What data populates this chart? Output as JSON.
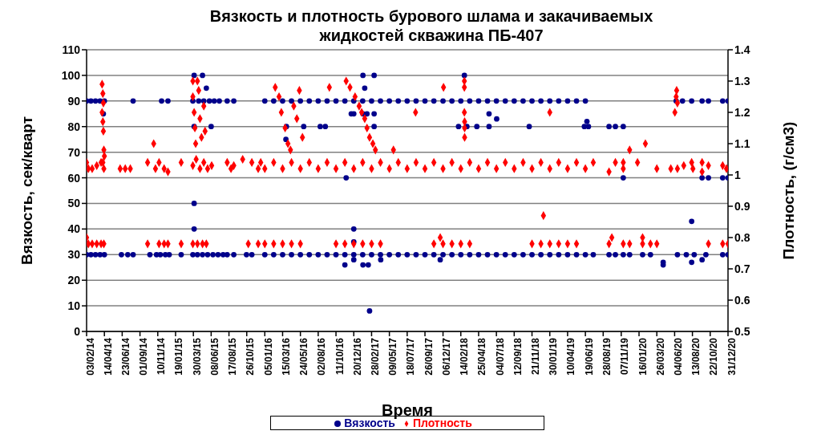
{
  "chart_data": {
    "type": "scatter",
    "title": "Вязкость и плотность бурового шлама и закачиваемых жидкостей скважина ПБ-407",
    "xlabel": "Время",
    "ylabel": "Вязкость, сек/кварт",
    "y2label": "Плотность, (г/см3)",
    "xlim": [
      "2014-02-03",
      "2020-12-31"
    ],
    "xticks": [
      {
        "value": "2014-02-03",
        "label": "03/02/14"
      },
      {
        "value": "2014-04-14",
        "label": "14/04/14"
      },
      {
        "value": "2014-06-23",
        "label": "23/06/14"
      },
      {
        "value": "2014-09-01",
        "label": "01/09/14"
      },
      {
        "value": "2014-11-10",
        "label": "10/11/14"
      },
      {
        "value": "2015-01-19",
        "label": "19/01/15"
      },
      {
        "value": "2015-03-30",
        "label": "30/03/15"
      },
      {
        "value": "2015-06-08",
        "label": "08/06/15"
      },
      {
        "value": "2015-08-17",
        "label": "17/08/15"
      },
      {
        "value": "2015-10-26",
        "label": "26/10/15"
      },
      {
        "value": "2016-01-05",
        "label": "05/01/16"
      },
      {
        "value": "2016-03-15",
        "label": "15/03/16"
      },
      {
        "value": "2016-05-24",
        "label": "24/05/16"
      },
      {
        "value": "2016-08-02",
        "label": "02/08/16"
      },
      {
        "value": "2016-10-11",
        "label": "11/10/16"
      },
      {
        "value": "2016-12-20",
        "label": "20/12/16"
      },
      {
        "value": "2017-02-28",
        "label": "28/02/17"
      },
      {
        "value": "2017-05-09",
        "label": "09/05/17"
      },
      {
        "value": "2017-07-18",
        "label": "18/07/17"
      },
      {
        "value": "2017-09-26",
        "label": "26/09/17"
      },
      {
        "value": "2017-12-06",
        "label": "06/12/17"
      },
      {
        "value": "2018-02-14",
        "label": "14/02/18"
      },
      {
        "value": "2018-04-25",
        "label": "25/04/18"
      },
      {
        "value": "2018-07-04",
        "label": "04/07/18"
      },
      {
        "value": "2018-09-12",
        "label": "12/09/18"
      },
      {
        "value": "2018-11-21",
        "label": "21/11/18"
      },
      {
        "value": "2019-01-30",
        "label": "30/01/19"
      },
      {
        "value": "2019-04-10",
        "label": "10/04/19"
      },
      {
        "value": "2019-06-19",
        "label": "19/06/19"
      },
      {
        "value": "2019-08-28",
        "label": "28/08/19"
      },
      {
        "value": "2019-11-07",
        "label": "07/11/19"
      },
      {
        "value": "2020-01-16",
        "label": "16/01/20"
      },
      {
        "value": "2020-03-26",
        "label": "26/03/20"
      },
      {
        "value": "2020-06-04",
        "label": "04/06/20"
      },
      {
        "value": "2020-08-13",
        "label": "13/08/20"
      },
      {
        "value": "2020-10-22",
        "label": "22/10/20"
      },
      {
        "value": "2020-12-31",
        "label": "31/12/20"
      }
    ],
    "ylim": [
      0,
      110
    ],
    "yticks": [
      0,
      10,
      20,
      30,
      40,
      50,
      60,
      70,
      80,
      90,
      100,
      110
    ],
    "y2lim": [
      0.5,
      1.4
    ],
    "y2ticks": [
      0.5,
      0.6,
      0.7,
      0.8,
      0.9,
      1,
      1.1,
      1.2,
      1.3,
      1.4
    ],
    "grid": "y",
    "legend": "bottom",
    "series": [
      {
        "name": "Вязкость",
        "color": "#00008b",
        "marker": "circle",
        "x": [
          "2014-02-03",
          "2014-02-03",
          "2014-02-20",
          "2014-02-20",
          "2014-03-10",
          "2014-03-10",
          "2014-03-28",
          "2014-03-28",
          "2014-04-10",
          "2014-04-14",
          "2014-04-14",
          "2014-06-20",
          "2014-07-15",
          "2014-08-05",
          "2014-08-05",
          "2014-10-10",
          "2014-11-05",
          "2014-11-20",
          "2014-12-10",
          "2014-12-25",
          "2014-11-25",
          "2014-12-20",
          "2015-02-10",
          "2015-03-28",
          "2015-04-15",
          "2015-05-05",
          "2015-05-25",
          "2015-06-15",
          "2015-07-05",
          "2015-07-25",
          "2015-03-28",
          "2015-04-20",
          "2015-05-10",
          "2015-06-01",
          "2015-06-20",
          "2015-07-10",
          "2015-04-02",
          "2015-05-05",
          "2015-05-20",
          "2015-04-02",
          "2015-06-08",
          "2015-04-02",
          "2015-04-02",
          "2015-08-10",
          "2015-09-05",
          "2015-08-10",
          "2015-09-05",
          "2015-10-25",
          "2015-11-15",
          "2016-01-05",
          "2016-01-05",
          "2016-02-09",
          "2016-02-09",
          "2016-03-15",
          "2016-03-15",
          "2016-04-19",
          "2016-04-19",
          "2016-05-24",
          "2016-05-24",
          "2016-06-28",
          "2016-06-28",
          "2016-08-02",
          "2016-08-02",
          "2016-09-06",
          "2016-09-06",
          "2016-10-11",
          "2016-10-11",
          "2016-11-15",
          "2016-11-15",
          "2016-12-20",
          "2016-12-20",
          "2017-01-24",
          "2017-01-24",
          "2017-02-28",
          "2017-02-28",
          "2017-04-04",
          "2017-04-04",
          "2017-05-09",
          "2017-05-09",
          "2017-06-13",
          "2017-06-13",
          "2017-07-18",
          "2017-07-18",
          "2017-08-22",
          "2017-08-22",
          "2017-09-26",
          "2017-09-26",
          "2017-10-31",
          "2017-10-31",
          "2017-12-06",
          "2017-12-06",
          "2018-01-10",
          "2018-01-10",
          "2018-02-14",
          "2018-02-14",
          "2018-03-21",
          "2018-03-21",
          "2018-04-25",
          "2018-04-25",
          "2018-05-30",
          "2018-05-30",
          "2018-07-04",
          "2018-07-04",
          "2018-08-08",
          "2018-08-08",
          "2018-09-12",
          "2018-09-12",
          "2018-10-17",
          "2018-10-17",
          "2018-11-21",
          "2018-11-21",
          "2018-12-26",
          "2018-12-26",
          "2019-01-30",
          "2019-01-30",
          "2019-03-06",
          "2019-03-06",
          "2019-04-10",
          "2019-04-10",
          "2019-05-15",
          "2019-05-15",
          "2019-06-19",
          "2019-06-19",
          "2019-07-20",
          "2016-03-30",
          "2016-03-28",
          "2016-06-06",
          "2016-08-10",
          "2016-08-30",
          "2016-12-10",
          "2016-12-20",
          "2016-11-20",
          "2016-12-20",
          "2016-12-20",
          "2016-11-15",
          "2016-12-20",
          "2017-01-25",
          "2017-03-10",
          "2017-02-01",
          "2017-01-25",
          "2017-02-10",
          "2017-03-10",
          "2017-03-10",
          "2017-01-25",
          "2017-02-15",
          "2017-02-20",
          "2017-04-05",
          "2017-11-25",
          "2018-02-28",
          "2018-02-05",
          "2018-03-10",
          "2018-04-18",
          "2018-06-05",
          "2018-06-05",
          "2018-07-05",
          "2018-11-10",
          "2019-06-15",
          "2019-06-25",
          "2019-07-01",
          "2019-09-20",
          "2019-10-15",
          "2019-11-15",
          "2019-09-20",
          "2019-10-15",
          "2019-11-15",
          "2019-12-10",
          "2020-01-30",
          "2020-03-01",
          "2020-06-15",
          "2020-07-20",
          "2020-08-20",
          "2020-10-05",
          "2020-12-10",
          "2020-12-31",
          "2020-04-20",
          "2020-04-20",
          "2020-08-10",
          "2020-09-20",
          "2020-08-10",
          "2020-06-10",
          "2020-07-05",
          "2020-08-10",
          "2020-09-20",
          "2020-10-15",
          "2020-12-10",
          "2020-12-31",
          "2019-11-15",
          "2020-09-20",
          "2020-10-15",
          "2020-12-10",
          "2020-12-31"
        ],
        "values": [
          30,
          90,
          30,
          90,
          30,
          90,
          30,
          90,
          85,
          30,
          90,
          30,
          30,
          30,
          90,
          30,
          30,
          30,
          30,
          30,
          90,
          90,
          30,
          30,
          30,
          30,
          30,
          30,
          30,
          30,
          90,
          90,
          90,
          90,
          90,
          90,
          100,
          100,
          95,
          80,
          80,
          50,
          40,
          90,
          90,
          30,
          30,
          30,
          30,
          30,
          90,
          30,
          90,
          30,
          90,
          30,
          90,
          30,
          90,
          30,
          90,
          30,
          90,
          30,
          90,
          30,
          90,
          30,
          90,
          30,
          90,
          30,
          90,
          30,
          90,
          30,
          90,
          30,
          90,
          30,
          90,
          30,
          90,
          30,
          90,
          30,
          90,
          30,
          90,
          30,
          90,
          30,
          90,
          30,
          90,
          30,
          90,
          30,
          90,
          30,
          90,
          30,
          90,
          30,
          90,
          30,
          90,
          30,
          90,
          30,
          90,
          30,
          90,
          30,
          90,
          30,
          90,
          30,
          90,
          30,
          90,
          30,
          90,
          30,
          80,
          75,
          80,
          80,
          80,
          85,
          85,
          60,
          40,
          35,
          26,
          28,
          100,
          100,
          95,
          85,
          85,
          80,
          85,
          26,
          26,
          8,
          28,
          28,
          100,
          80,
          80,
          80,
          85,
          80,
          83,
          80,
          80,
          82,
          80,
          80,
          80,
          80,
          30,
          30,
          30,
          30,
          30,
          30,
          30,
          30,
          30,
          30,
          30,
          30,
          27,
          26,
          27,
          28,
          43,
          90,
          90,
          90,
          90,
          90,
          90,
          90,
          60,
          60,
          60,
          60,
          60
        ]
      },
      {
        "name": "Плотность",
        "color": "#ff0000",
        "marker": "diamond",
        "axis": "y2",
        "x": [
          "2014-02-03",
          "2014-02-03",
          "2014-02-10",
          "2014-02-10",
          "2014-02-25",
          "2014-02-25",
          "2014-03-15",
          "2014-03-15",
          "2014-04-01",
          "2014-04-01",
          "2014-04-12",
          "2014-04-12",
          "2014-04-05",
          "2014-04-08",
          "2014-04-10",
          "2014-04-05",
          "2014-04-08",
          "2014-04-10",
          "2014-04-12",
          "2014-04-14",
          "2014-04-08",
          "2014-06-15",
          "2014-07-05",
          "2014-07-25",
          "2014-10-01",
          "2014-10-01",
          "2014-10-25",
          "2014-11-01",
          "2014-11-15",
          "2014-11-15",
          "2014-12-05",
          "2014-12-05",
          "2014-12-20",
          "2014-12-20",
          "2015-02-10",
          "2015-02-10",
          "2015-03-28",
          "2015-03-28",
          "2015-04-02",
          "2015-04-05",
          "2015-04-08",
          "2015-04-15",
          "2015-04-20",
          "2015-04-25",
          "2015-05-01",
          "2015-05-10",
          "2015-05-15",
          "2015-03-28",
          "2015-04-10",
          "2015-04-25",
          "2015-05-10",
          "2015-05-25",
          "2015-06-10",
          "2015-03-28",
          "2015-04-15",
          "2015-05-05",
          "2015-05-20",
          "2015-08-10",
          "2015-08-25",
          "2015-09-05",
          "2015-10-10",
          "2015-11-15",
          "2015-12-10",
          "2015-12-20",
          "2015-11-01",
          "2015-12-10",
          "2016-01-05",
          "2016-02-09",
          "2016-03-15",
          "2016-04-19",
          "2016-05-24",
          "2016-06-28",
          "2016-08-02",
          "2016-09-06",
          "2016-10-11",
          "2016-11-15",
          "2016-12-20",
          "2017-01-24",
          "2017-02-28",
          "2017-04-04",
          "2017-05-09",
          "2017-06-13",
          "2017-07-18",
          "2017-08-22",
          "2017-09-26",
          "2017-10-31",
          "2017-12-06",
          "2018-01-10",
          "2018-02-14",
          "2018-03-21",
          "2018-04-25",
          "2018-05-30",
          "2018-07-04",
          "2018-08-08",
          "2018-09-12",
          "2018-10-17",
          "2018-11-21",
          "2018-12-26",
          "2019-01-30",
          "2019-03-06",
          "2019-04-10",
          "2019-05-15",
          "2019-06-19",
          "2019-07-20",
          "2016-01-05",
          "2016-02-09",
          "2016-03-15",
          "2016-04-19",
          "2016-05-24",
          "2016-10-11",
          "2016-11-15",
          "2016-12-20",
          "2017-01-24",
          "2017-02-28",
          "2017-04-04",
          "2017-10-31",
          "2017-12-06",
          "2018-01-10",
          "2018-02-14",
          "2018-03-21",
          "2018-11-21",
          "2018-12-26",
          "2019-01-30",
          "2019-03-06",
          "2019-04-10",
          "2019-05-15",
          "2016-02-15",
          "2016-03-01",
          "2016-03-10",
          "2016-03-25",
          "2016-04-05",
          "2016-04-15",
          "2016-04-28",
          "2016-05-10",
          "2016-05-20",
          "2016-06-01",
          "2016-09-15",
          "2016-11-20",
          "2016-12-05",
          "2016-12-25",
          "2017-01-10",
          "2017-01-20",
          "2017-02-01",
          "2017-02-10",
          "2017-02-20",
          "2017-03-05",
          "2017-03-15",
          "2017-05-25",
          "2017-08-20",
          "2017-12-08",
          "2018-02-28",
          "2018-02-28",
          "2018-02-28",
          "2018-03-01",
          "2018-03-01",
          "2018-03-01",
          "2017-11-25",
          "2019-01-30",
          "2019-01-05",
          "2019-09-20",
          "2019-10-15",
          "2019-11-15",
          "2019-11-15",
          "2019-12-10",
          "2020-01-10",
          "2020-02-10",
          "2020-03-26",
          "2020-05-20",
          "2020-06-10",
          "2020-06-12",
          "2020-06-15",
          "2020-06-15",
          "2020-06-05",
          "2020-07-10",
          "2020-08-10",
          "2020-08-15",
          "2020-09-20",
          "2020-09-20",
          "2020-10-15",
          "2020-12-10",
          "2020-12-25",
          "2019-09-20",
          "2019-10-01",
          "2019-11-15",
          "2019-12-10",
          "2020-01-30",
          "2020-01-30",
          "2020-03-01",
          "2020-03-26",
          "2020-10-15",
          "2020-12-10",
          "2020-12-31"
        ],
        "values": [
          0.8,
          1.04,
          1.02,
          0.78,
          1.02,
          0.78,
          1.03,
          0.78,
          1.04,
          0.78,
          1.02,
          0.78,
          1.29,
          1.26,
          1.23,
          1.2,
          1.17,
          1.14,
          1.08,
          1.06,
          1.04,
          1.02,
          1.02,
          1.02,
          1.04,
          0.78,
          1.1,
          1.02,
          1.04,
          0.78,
          1.02,
          0.78,
          1.01,
          0.78,
          1.04,
          0.78,
          1.3,
          1.25,
          1.2,
          1.15,
          1.1,
          1.3,
          1.27,
          1.18,
          1.12,
          1.22,
          1.14,
          1.03,
          1.05,
          1.02,
          1.04,
          1.02,
          1.03,
          0.78,
          0.78,
          0.78,
          0.78,
          1.04,
          1.02,
          1.03,
          1.05,
          1.04,
          1.02,
          1.04,
          0.78,
          0.78,
          1.02,
          1.04,
          1.02,
          1.04,
          1.02,
          1.04,
          1.02,
          1.04,
          1.02,
          1.04,
          1.02,
          1.04,
          1.02,
          1.04,
          1.02,
          1.04,
          1.02,
          1.04,
          1.02,
          1.04,
          1.02,
          1.04,
          1.02,
          1.04,
          1.02,
          1.04,
          1.02,
          1.04,
          1.02,
          1.04,
          1.02,
          1.04,
          1.02,
          1.04,
          1.02,
          1.04,
          1.02,
          1.04,
          0.78,
          0.78,
          0.78,
          0.78,
          0.78,
          0.78,
          0.78,
          0.78,
          0.78,
          0.78,
          0.78,
          0.78,
          0.78,
          0.78,
          0.78,
          0.78,
          0.78,
          0.78,
          0.78,
          0.78,
          0.78,
          0.78,
          1.28,
          1.25,
          1.2,
          1.15,
          1.1,
          1.08,
          1.22,
          1.18,
          1.27,
          1.12,
          1.28,
          1.3,
          1.28,
          1.25,
          1.22,
          1.2,
          1.18,
          1.15,
          1.12,
          1.1,
          1.08,
          1.08,
          1.2,
          1.28,
          1.3,
          1.28,
          1.2,
          1.17,
          1.15,
          1.12,
          0.8,
          1.2,
          0.87,
          1.01,
          1.04,
          1.02,
          1.04,
          1.08,
          1.04,
          1.1,
          1.02,
          1.02,
          1.25,
          1.27,
          1.23,
          1.02,
          1.2,
          1.03,
          1.04,
          1.02,
          1.04,
          1.01,
          1.03,
          1.03,
          1.02,
          0.78,
          0.8,
          0.78,
          0.78,
          0.8,
          0.78,
          0.78,
          0.78,
          0.78,
          0.78,
          0.78
        ]
      }
    ]
  }
}
